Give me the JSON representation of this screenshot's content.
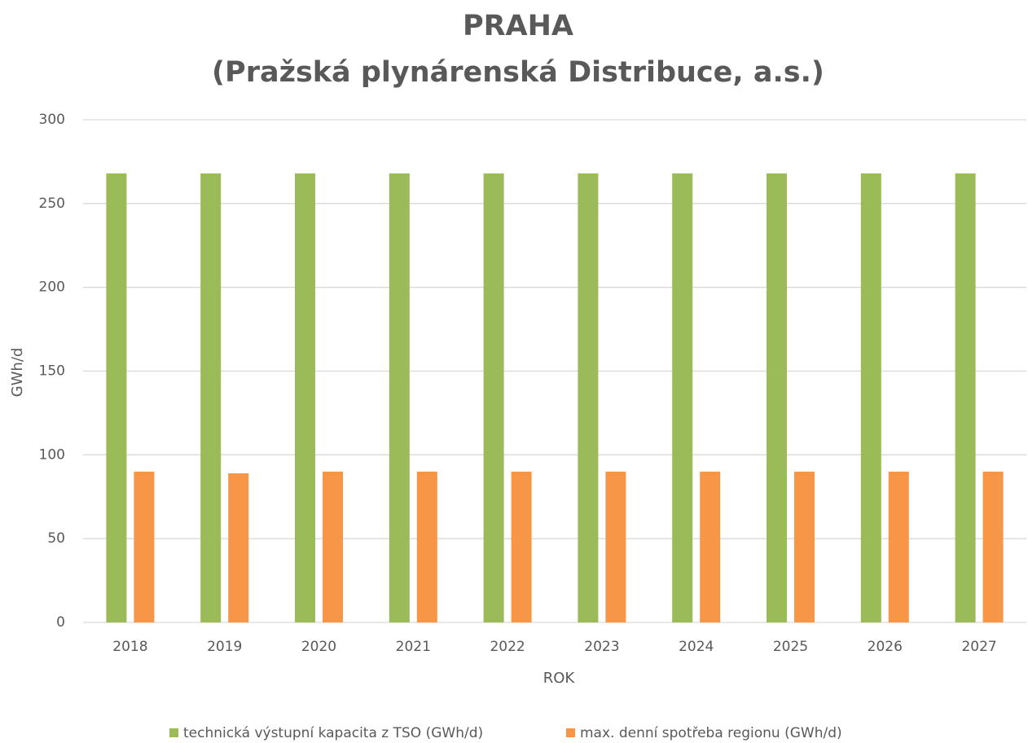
{
  "chart_data": {
    "type": "bar",
    "title": "PRAHA",
    "subtitle": "(Pražská plynárenská Distribuce, a.s.)",
    "x_label": "ROK",
    "y_label": "GWh/d",
    "categories": [
      "2018",
      "2019",
      "2020",
      "2021",
      "2022",
      "2023",
      "2024",
      "2025",
      "2026",
      "2027"
    ],
    "series": [
      {
        "name": "technická výstupní kapacita z TSO (GWh/d)",
        "color": "#9bbb59",
        "values": [
          268,
          268,
          268,
          268,
          268,
          268,
          268,
          268,
          268,
          268
        ]
      },
      {
        "name": "max. denní spotřeba regionu (GWh/d)",
        "color": "#f79646",
        "values": [
          90,
          89,
          90,
          90,
          90,
          90,
          90,
          90,
          90,
          90
        ]
      }
    ],
    "ylim": [
      0,
      300
    ],
    "yticks": [
      0,
      50,
      100,
      150,
      200,
      250,
      300
    ],
    "grid": true,
    "legend": "bottom"
  }
}
